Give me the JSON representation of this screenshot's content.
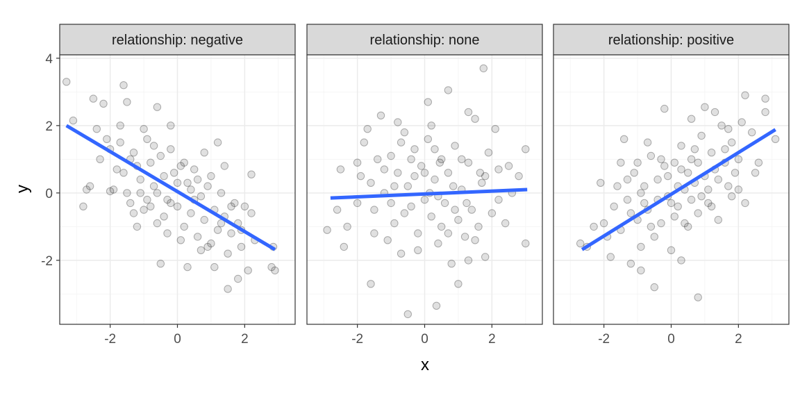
{
  "chart_data": {
    "type": "scatter",
    "layout": "faceted",
    "facet_variable": "relationship",
    "xlabel": "x",
    "ylabel": "y",
    "xlim": [
      -3.5,
      3.5
    ],
    "ylim": [
      -3.9,
      4.1
    ],
    "x_ticks": [
      -2,
      0,
      2
    ],
    "x_tick_labels": [
      "-2",
      "0",
      "2"
    ],
    "y_ticks": [
      -2,
      0,
      2,
      4
    ],
    "y_tick_labels": [
      "-2",
      "0",
      "2",
      "4"
    ],
    "grid": true,
    "point_color": "#000000",
    "point_alpha": 0.15,
    "fit_color": "#3366ff",
    "facets": [
      {
        "label": "relationship: negative",
        "fit": {
          "x": [
            -3.3,
            2.9
          ],
          "y": [
            2.0,
            -1.68
          ]
        },
        "points": [
          [
            -3.3,
            3.3
          ],
          [
            -3.1,
            2.15
          ],
          [
            -2.5,
            2.8
          ],
          [
            -2.2,
            2.65
          ],
          [
            -1.6,
            3.2
          ],
          [
            -1.5,
            2.7
          ],
          [
            -0.6,
            2.55
          ],
          [
            -2.8,
            -0.4
          ],
          [
            -2.6,
            0.2
          ],
          [
            -2.4,
            1.9
          ],
          [
            -2.3,
            1.0
          ],
          [
            -2.0,
            0.05
          ],
          [
            -1.9,
            0.1
          ],
          [
            -1.8,
            0.7
          ],
          [
            -1.7,
            1.5
          ],
          [
            -1.5,
            0.0
          ],
          [
            -1.4,
            -0.3
          ],
          [
            -1.3,
            1.2
          ],
          [
            -1.2,
            0.8
          ],
          [
            -1.1,
            0.4
          ],
          [
            -1.0,
            -0.5
          ],
          [
            -0.9,
            1.6
          ],
          [
            -0.8,
            0.9
          ],
          [
            -0.7,
            0.2
          ],
          [
            -0.6,
            -0.9
          ],
          [
            -0.5,
            1.1
          ],
          [
            -0.4,
            0.5
          ],
          [
            -0.3,
            -0.2
          ],
          [
            -0.2,
            1.3
          ],
          [
            -0.1,
            0.6
          ],
          [
            0.0,
            -0.4
          ],
          [
            0.1,
            0.8
          ],
          [
            0.2,
            -1.0
          ],
          [
            0.3,
            0.3
          ],
          [
            0.4,
            -0.6
          ],
          [
            0.5,
            0.7
          ],
          [
            0.6,
            -1.3
          ],
          [
            0.7,
            -0.1
          ],
          [
            0.8,
            -0.8
          ],
          [
            0.9,
            0.2
          ],
          [
            1.0,
            -1.5
          ],
          [
            1.1,
            -0.5
          ],
          [
            1.2,
            -1.1
          ],
          [
            1.3,
            0.0
          ],
          [
            1.4,
            -0.7
          ],
          [
            1.5,
            -1.8
          ],
          [
            1.6,
            -1.2
          ],
          [
            1.7,
            -0.3
          ],
          [
            1.8,
            -0.9
          ],
          [
            1.9,
            -1.6
          ],
          [
            2.0,
            -0.4
          ],
          [
            2.1,
            -2.3
          ],
          [
            2.2,
            -0.6
          ],
          [
            2.3,
            -1.4
          ],
          [
            -0.5,
            -2.1
          ],
          [
            0.3,
            -2.2
          ],
          [
            1.1,
            -2.2
          ],
          [
            1.5,
            -2.85
          ],
          [
            1.8,
            -2.55
          ],
          [
            2.9,
            -2.3
          ],
          [
            2.8,
            -2.2
          ],
          [
            2.85,
            -1.6
          ],
          [
            1.2,
            1.5
          ],
          [
            -1.7,
            2.0
          ],
          [
            -0.2,
            2.0
          ],
          [
            0.8,
            1.2
          ],
          [
            -1.0,
            1.9
          ],
          [
            -2.1,
            1.6
          ],
          [
            -1.3,
            -0.6
          ],
          [
            -0.8,
            -0.4
          ],
          [
            -0.3,
            -1.2
          ],
          [
            0.1,
            -1.4
          ],
          [
            0.5,
            -0.2
          ],
          [
            0.9,
            -1.6
          ],
          [
            1.4,
            0.8
          ],
          [
            1.6,
            -0.4
          ],
          [
            2.2,
            0.55
          ],
          [
            -0.6,
            0.0
          ],
          [
            -0.4,
            -0.7
          ],
          [
            0.0,
            0.3
          ],
          [
            0.4,
            0.1
          ],
          [
            -1.1,
            0.0
          ],
          [
            -1.6,
            0.6
          ],
          [
            -0.9,
            -0.2
          ],
          [
            0.6,
            0.4
          ],
          [
            1.0,
            0.5
          ],
          [
            -0.2,
            -0.3
          ],
          [
            0.2,
            0.9
          ],
          [
            -0.7,
            1.4
          ],
          [
            -1.4,
            1.0
          ],
          [
            -2.7,
            0.1
          ],
          [
            -2.0,
            1.3
          ],
          [
            -1.2,
            -1.0
          ],
          [
            0.7,
            -1.7
          ],
          [
            1.3,
            -0.9
          ],
          [
            1.9,
            -1.1
          ]
        ]
      },
      {
        "label": "relationship: none",
        "fit": {
          "x": [
            -2.8,
            3.05
          ],
          "y": [
            -0.15,
            0.1
          ]
        },
        "points": [
          [
            1.75,
            3.7
          ],
          [
            0.7,
            3.05
          ],
          [
            0.1,
            2.7
          ],
          [
            -2.9,
            -1.1
          ],
          [
            -2.5,
            0.7
          ],
          [
            -2.3,
            -1.0
          ],
          [
            -2.4,
            -1.6
          ],
          [
            -2.0,
            0.9
          ],
          [
            -1.8,
            1.5
          ],
          [
            -1.6,
            0.3
          ],
          [
            -1.5,
            -0.5
          ],
          [
            -1.3,
            2.3
          ],
          [
            -1.2,
            0.0
          ],
          [
            -1.0,
            1.1
          ],
          [
            -0.9,
            -0.9
          ],
          [
            -0.8,
            0.6
          ],
          [
            -0.7,
            -1.8
          ],
          [
            -0.6,
            1.8
          ],
          [
            -0.5,
            0.2
          ],
          [
            -0.4,
            -0.4
          ],
          [
            -0.3,
            1.3
          ],
          [
            -0.2,
            -1.2
          ],
          [
            -0.1,
            0.8
          ],
          [
            0.0,
            -0.2
          ],
          [
            0.1,
            1.6
          ],
          [
            0.2,
            -0.7
          ],
          [
            0.3,
            0.4
          ],
          [
            0.4,
            -1.5
          ],
          [
            0.5,
            1.0
          ],
          [
            0.6,
            -0.3
          ],
          [
            0.7,
            0.6
          ],
          [
            0.8,
            -2.1
          ],
          [
            0.9,
            1.4
          ],
          [
            1.0,
            -0.8
          ],
          [
            1.1,
            0.1
          ],
          [
            1.2,
            -1.3
          ],
          [
            1.3,
            0.9
          ],
          [
            1.4,
            -0.5
          ],
          [
            1.5,
            2.2
          ],
          [
            1.6,
            -1.0
          ],
          [
            1.7,
            0.3
          ],
          [
            1.8,
            -1.9
          ],
          [
            1.9,
            1.2
          ],
          [
            2.0,
            -0.6
          ],
          [
            2.2,
            0.7
          ],
          [
            2.4,
            -0.9
          ],
          [
            2.6,
            0.0
          ],
          [
            3.0,
            1.3
          ],
          [
            3.0,
            -1.5
          ],
          [
            -1.6,
            -2.7
          ],
          [
            -0.5,
            -3.6
          ],
          [
            0.35,
            -3.35
          ],
          [
            1.0,
            -2.7
          ],
          [
            1.3,
            2.4
          ],
          [
            0.2,
            2.0
          ],
          [
            -0.8,
            2.1
          ],
          [
            -1.7,
            1.9
          ],
          [
            2.1,
            1.9
          ],
          [
            2.5,
            0.8
          ],
          [
            -2.0,
            -0.3
          ],
          [
            -1.4,
            1.0
          ],
          [
            -1.1,
            -1.4
          ],
          [
            -0.6,
            -0.6
          ],
          [
            -0.3,
            0.5
          ],
          [
            0.15,
            0.0
          ],
          [
            0.45,
            0.9
          ],
          [
            0.85,
            0.2
          ],
          [
            1.25,
            -0.3
          ],
          [
            1.65,
            0.6
          ],
          [
            -1.9,
            0.5
          ],
          [
            -1.2,
            0.7
          ],
          [
            -0.4,
            1.0
          ],
          [
            0.5,
            -1.0
          ],
          [
            1.1,
            1.0
          ],
          [
            1.5,
            -1.4
          ],
          [
            -0.2,
            -1.7
          ],
          [
            0.7,
            -1.2
          ],
          [
            -0.9,
            0.2
          ],
          [
            0.3,
            1.3
          ],
          [
            2.2,
            -0.2
          ],
          [
            -2.6,
            -0.5
          ],
          [
            -1.0,
            -0.3
          ],
          [
            0.0,
            0.6
          ],
          [
            0.9,
            -0.5
          ],
          [
            1.8,
            0.5
          ],
          [
            -0.7,
            1.5
          ],
          [
            0.4,
            -0.1
          ],
          [
            -1.5,
            -1.2
          ],
          [
            1.3,
            -2.0
          ],
          [
            2.8,
            0.5
          ]
        ]
      },
      {
        "label": "relationship: positive",
        "fit": {
          "x": [
            -2.65,
            3.1
          ],
          "y": [
            -1.68,
            1.88
          ]
        },
        "points": [
          [
            -2.7,
            -1.5
          ],
          [
            -2.5,
            -1.6
          ],
          [
            -2.3,
            -1.0
          ],
          [
            -2.1,
            0.3
          ],
          [
            -1.8,
            -1.9
          ],
          [
            -1.7,
            -0.4
          ],
          [
            -1.5,
            -1.1
          ],
          [
            -1.4,
            1.6
          ],
          [
            -1.3,
            -0.2
          ],
          [
            -1.2,
            -2.1
          ],
          [
            -1.1,
            0.6
          ],
          [
            -1.0,
            -0.8
          ],
          [
            -0.9,
            -1.6
          ],
          [
            -0.8,
            0.2
          ],
          [
            -0.7,
            -0.5
          ],
          [
            -0.6,
            1.1
          ],
          [
            -0.5,
            -1.3
          ],
          [
            -0.4,
            0.4
          ],
          [
            -0.3,
            -0.9
          ],
          [
            -0.2,
            0.8
          ],
          [
            -0.1,
            -0.1
          ],
          [
            0.0,
            -1.7
          ],
          [
            0.1,
            0.9
          ],
          [
            0.2,
            -0.4
          ],
          [
            0.3,
            1.4
          ],
          [
            0.4,
            0.1
          ],
          [
            0.5,
            -1.0
          ],
          [
            0.6,
            1.0
          ],
          [
            0.7,
            0.3
          ],
          [
            0.8,
            -0.6
          ],
          [
            0.9,
            1.7
          ],
          [
            1.0,
            0.5
          ],
          [
            1.1,
            -0.3
          ],
          [
            1.2,
            1.2
          ],
          [
            1.3,
            0.7
          ],
          [
            1.4,
            -0.8
          ],
          [
            1.5,
            2.0
          ],
          [
            1.6,
            0.9
          ],
          [
            1.7,
            0.2
          ],
          [
            1.8,
            1.5
          ],
          [
            1.9,
            0.6
          ],
          [
            2.0,
            1.0
          ],
          [
            2.1,
            2.1
          ],
          [
            2.2,
            -0.3
          ],
          [
            2.4,
            1.8
          ],
          [
            2.6,
            0.9
          ],
          [
            2.8,
            2.4
          ],
          [
            3.1,
            1.6
          ],
          [
            2.2,
            2.9
          ],
          [
            2.8,
            2.8
          ],
          [
            1.0,
            2.55
          ],
          [
            -0.5,
            -2.8
          ],
          [
            0.8,
            -3.1
          ],
          [
            -0.9,
            -2.3
          ],
          [
            0.3,
            -2.0
          ],
          [
            -0.2,
            2.5
          ],
          [
            0.6,
            2.2
          ],
          [
            1.3,
            2.4
          ],
          [
            -1.5,
            0.9
          ],
          [
            -0.7,
            1.5
          ],
          [
            0.1,
            -0.7
          ],
          [
            0.5,
            0.6
          ],
          [
            1.1,
            0.1
          ],
          [
            -1.2,
            -0.6
          ],
          [
            -0.4,
            -0.2
          ],
          [
            0.2,
            0.2
          ],
          [
            0.9,
            -0.1
          ],
          [
            1.6,
            1.3
          ],
          [
            -2.0,
            -0.9
          ],
          [
            -1.6,
            0.2
          ],
          [
            -0.9,
            0.0
          ],
          [
            -0.1,
            0.5
          ],
          [
            0.7,
            1.3
          ],
          [
            1.4,
            0.4
          ],
          [
            2.0,
            0.1
          ],
          [
            -0.6,
            -1.0
          ],
          [
            0.0,
            -0.3
          ],
          [
            0.4,
            -0.9
          ],
          [
            1.8,
            -0.1
          ],
          [
            -1.0,
            0.9
          ],
          [
            2.5,
            0.6
          ],
          [
            -1.9,
            -1.3
          ],
          [
            -0.3,
            1.0
          ],
          [
            1.2,
            -0.4
          ],
          [
            0.6,
            -0.2
          ],
          [
            -0.8,
            -0.3
          ],
          [
            0.3,
            0.7
          ],
          [
            1.7,
            1.9
          ],
          [
            -1.3,
            0.4
          ],
          [
            0.8,
            0.9
          ]
        ]
      }
    ]
  }
}
